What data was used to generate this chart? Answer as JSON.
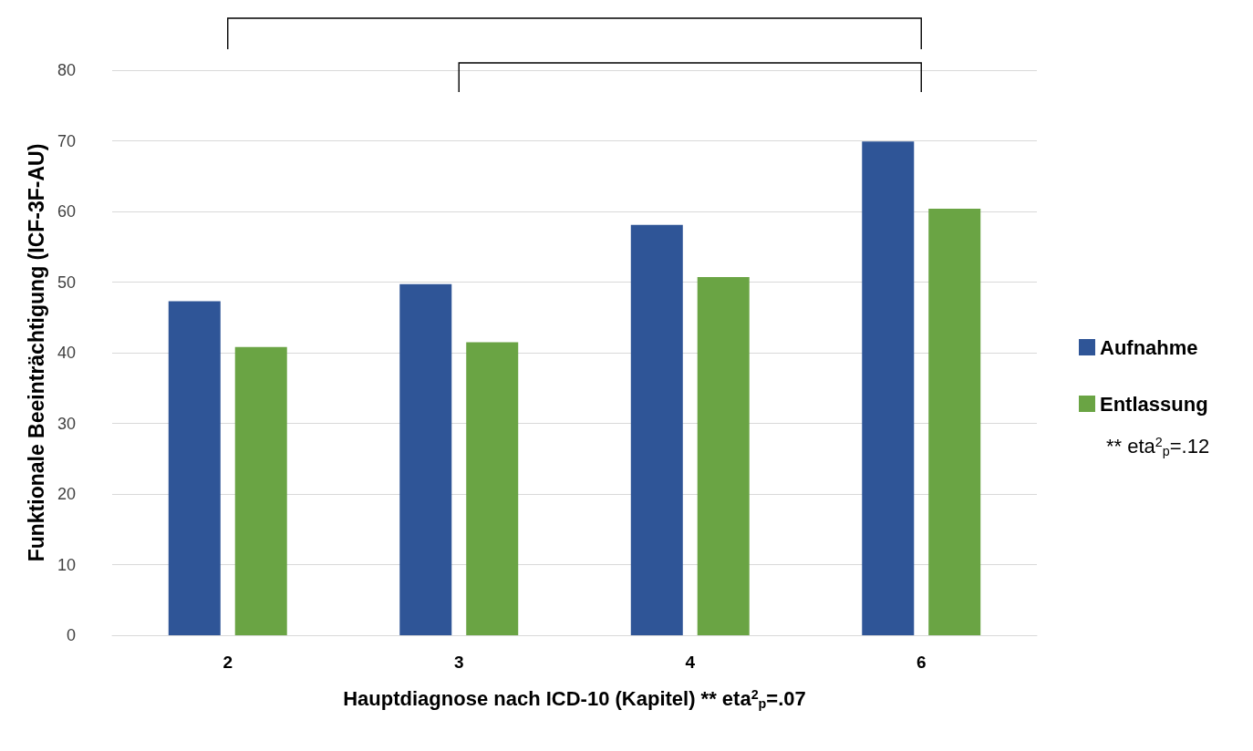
{
  "chart_data": {
    "type": "bar",
    "xlabel": "Hauptdiagnose nach ICD-10 (Kapitel) ** eta$^{2}$$_{p}$=.07",
    "ylabel": "Funktionale Beeinträchtigung (ICF-3F-AU)",
    "categories": [
      "2",
      "3",
      "4",
      "6"
    ],
    "series": [
      {
        "name": "Aufnahme",
        "color": "#2f5597",
        "values": [
          47.3,
          49.7,
          58.1,
          69.9
        ]
      },
      {
        "name": "Entlassung",
        "color": "#6aa444",
        "values": [
          40.8,
          41.5,
          50.7,
          60.4
        ]
      }
    ],
    "ylim": [
      0,
      80
    ],
    "yticks": [
      0,
      10,
      20,
      30,
      40,
      50,
      60,
      70,
      80
    ],
    "grid": "y",
    "legend": "right",
    "annotations": [
      "** eta$^{2}$$_{p}$=.12"
    ]
  }
}
